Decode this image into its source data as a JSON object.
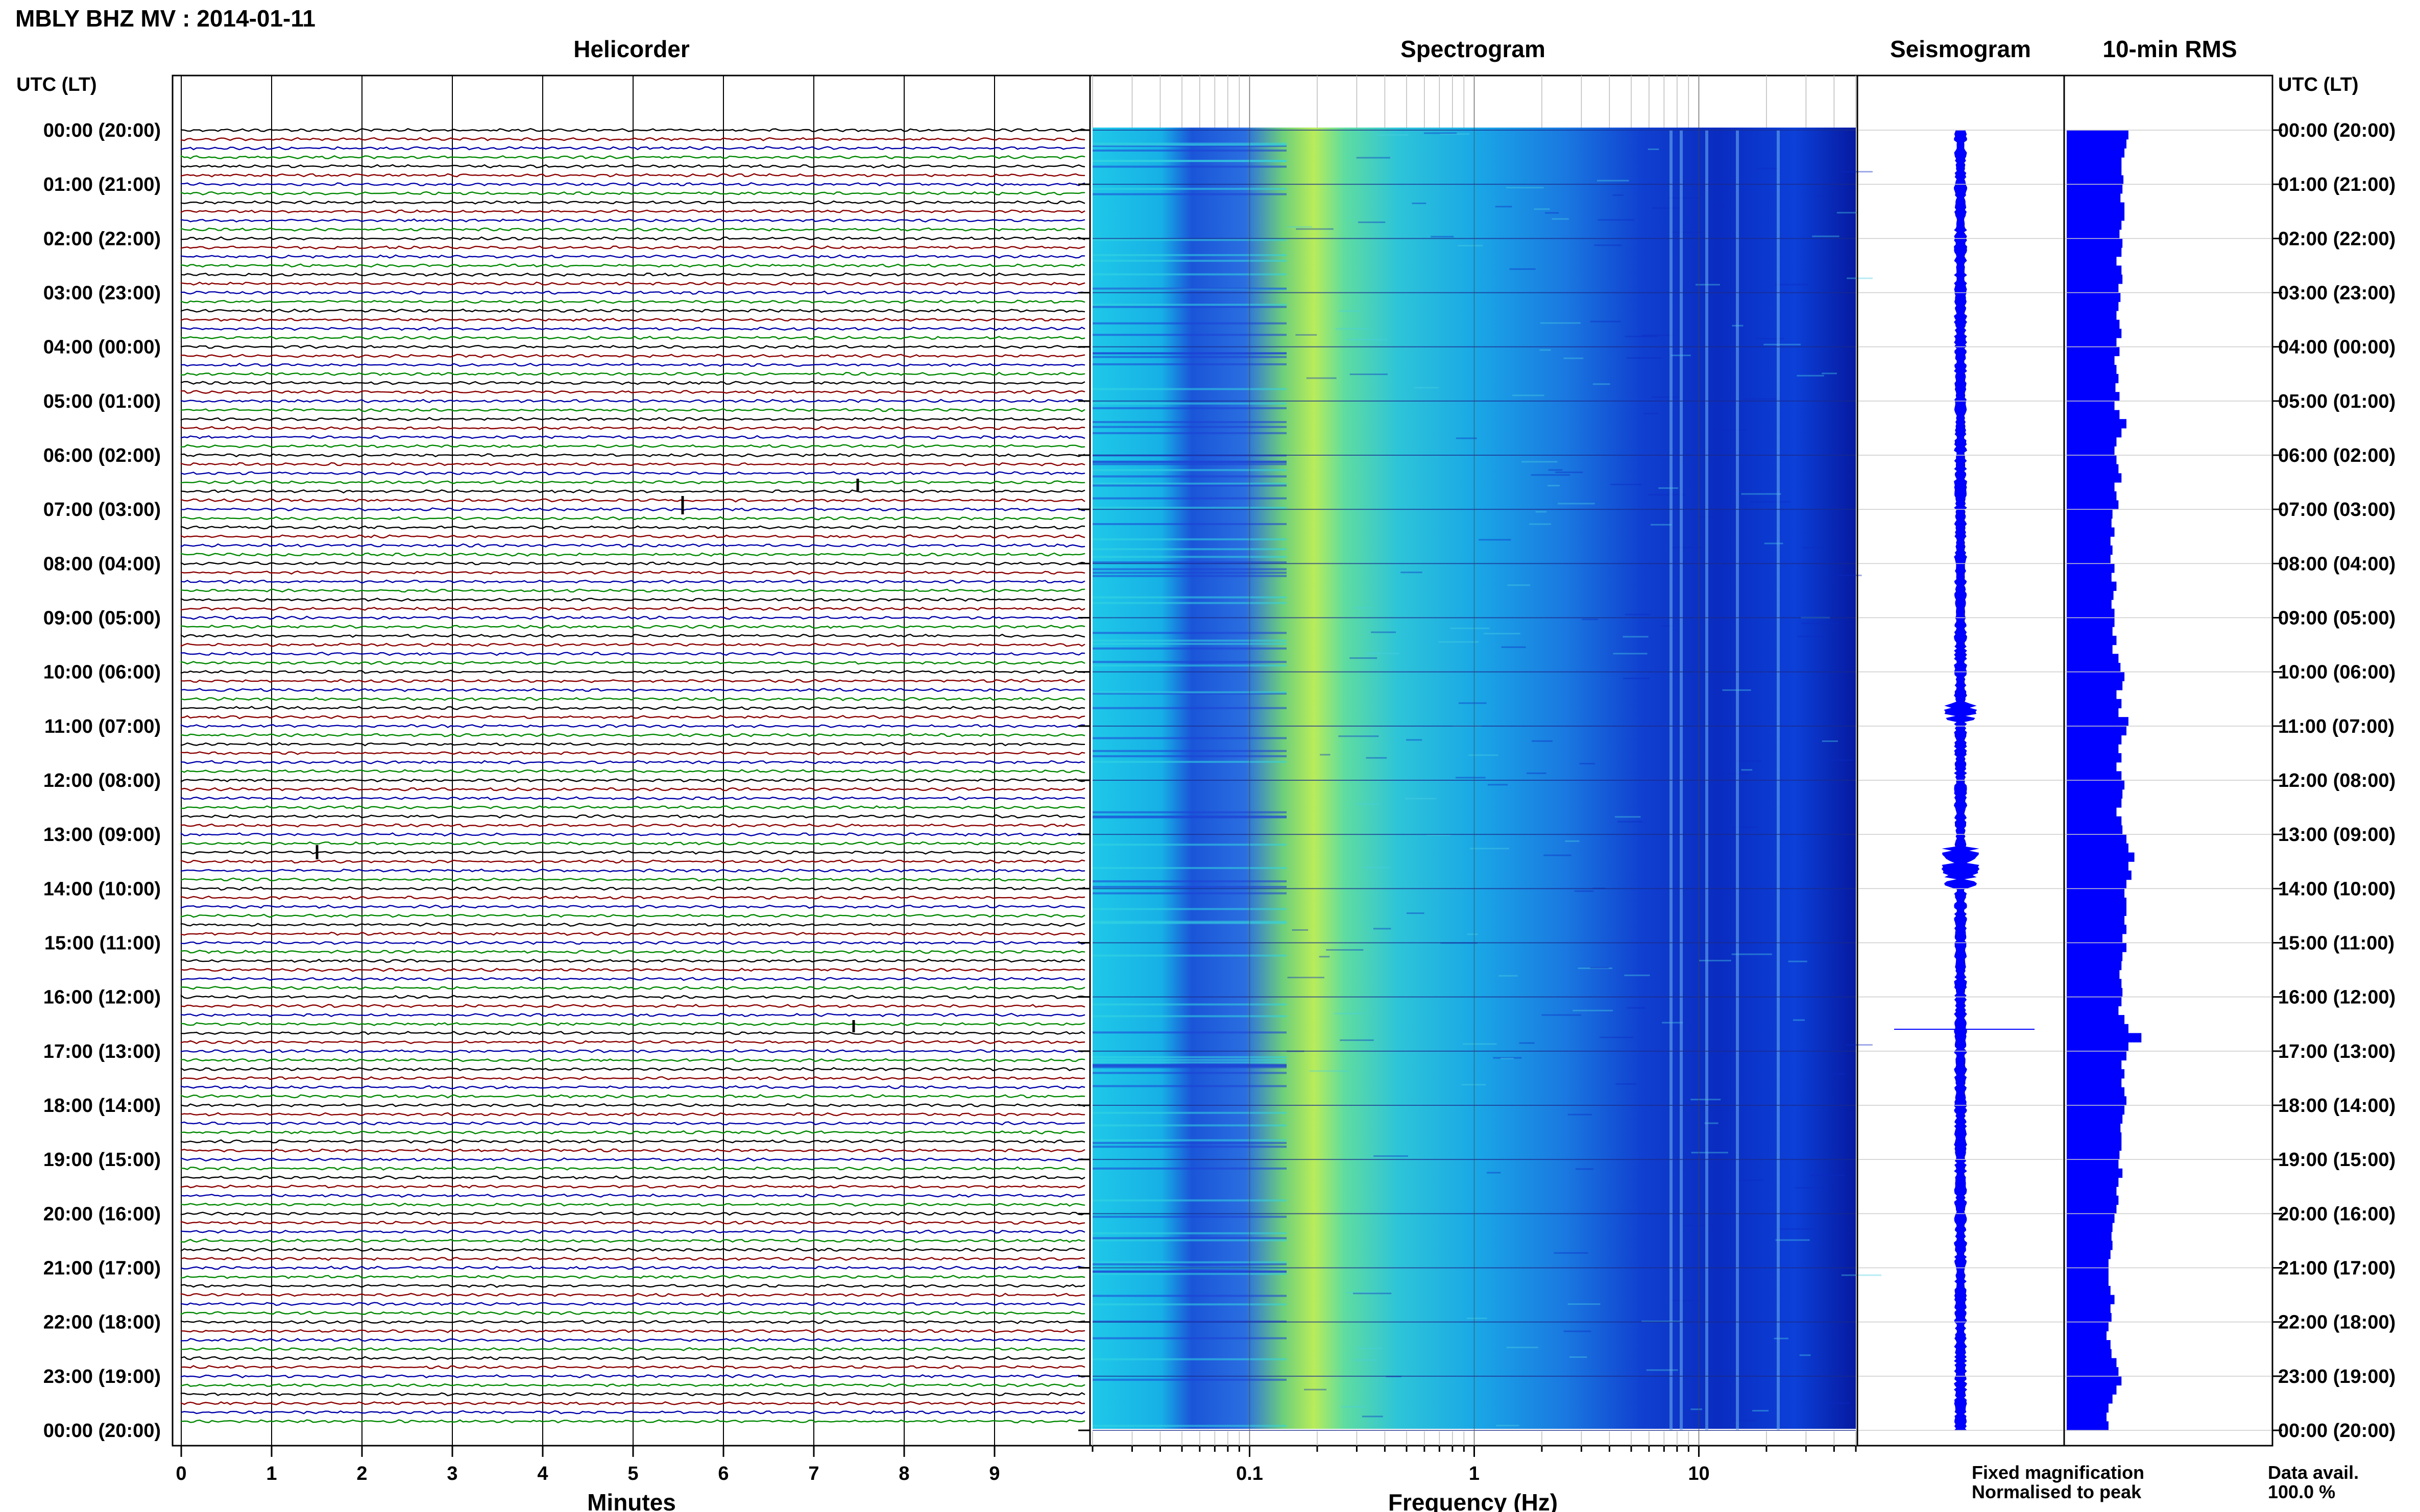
{
  "header": {
    "title": "MBLY BHZ MV : 2014-01-11",
    "panel_titles": [
      "Helicorder",
      "Spectrogram",
      "Seismogram",
      "10-min RMS"
    ],
    "utc_label_left": "UTC (LT)",
    "utc_label_right": "UTC (LT)"
  },
  "axes": {
    "time_labels": [
      "00:00 (20:00)",
      "01:00 (21:00)",
      "02:00 (22:00)",
      "03:00 (23:00)",
      "04:00 (00:00)",
      "05:00 (01:00)",
      "06:00 (02:00)",
      "07:00 (03:00)",
      "08:00 (04:00)",
      "09:00 (05:00)",
      "10:00 (06:00)",
      "11:00 (07:00)",
      "12:00 (08:00)",
      "13:00 (09:00)",
      "14:00 (10:00)",
      "15:00 (11:00)",
      "16:00 (12:00)",
      "17:00 (13:00)",
      "18:00 (14:00)",
      "19:00 (15:00)",
      "20:00 (16:00)",
      "21:00 (17:00)",
      "22:00 (18:00)",
      "23:00 (19:00)",
      "00:00 (20:00)"
    ],
    "minutes_ticks": [
      "0",
      "1",
      "2",
      "3",
      "4",
      "5",
      "6",
      "7",
      "8",
      "9"
    ],
    "minutes_label": "Minutes",
    "frequency_ticks": [
      "0.1",
      "1",
      "10"
    ],
    "frequency_label": "Frequency (Hz)"
  },
  "legend": {
    "fixed": "Fixed magnification",
    "normalised": "Normalised to peak",
    "fixed_color": "#1a1aff",
    "normalised_color": "#ff1a1a"
  },
  "data_avail": {
    "label": "Data avail.",
    "value": "100.0 %"
  },
  "colors": {
    "trace_cycle": [
      "#000000",
      "#8b0000",
      "#0000aa",
      "#008800"
    ],
    "rms_bar": "#0000ff",
    "seismogram": "#0000ff"
  },
  "chart_data": [
    {
      "type": "line",
      "title": "Helicorder",
      "xlabel": "Minutes",
      "xlim": [
        0,
        10
      ],
      "rows_per_hour": 6,
      "hours": 24
    },
    {
      "type": "heatmap",
      "title": "Spectrogram",
      "xlabel": "Frequency (Hz)",
      "xscale": "log",
      "xlim": [
        0.02,
        50
      ]
    },
    {
      "type": "line",
      "title": "Seismogram"
    },
    {
      "type": "bar",
      "title": "10-min RMS",
      "relative_values": [
        0.62,
        0.6,
        0.58,
        0.55,
        0.55,
        0.57,
        0.56,
        0.54,
        0.58,
        0.58,
        0.55,
        0.53,
        0.56,
        0.55,
        0.5,
        0.55,
        0.56,
        0.52,
        0.54,
        0.52,
        0.5,
        0.53,
        0.55,
        0.5,
        0.53,
        0.48,
        0.5,
        0.52,
        0.49,
        0.53,
        0.48,
        0.53,
        0.6,
        0.55,
        0.5,
        0.48,
        0.5,
        0.52,
        0.55,
        0.48,
        0.5,
        0.52,
        0.46,
        0.45,
        0.48,
        0.44,
        0.46,
        0.44,
        0.48,
        0.45,
        0.5,
        0.47,
        0.45,
        0.48,
        0.48,
        0.46,
        0.5,
        0.46,
        0.52,
        0.54,
        0.58,
        0.56,
        0.5,
        0.55,
        0.52,
        0.62,
        0.6,
        0.55,
        0.52,
        0.55,
        0.5,
        0.55,
        0.58,
        0.56,
        0.55,
        0.5,
        0.55,
        0.56,
        0.6,
        0.62,
        0.68,
        0.62,
        0.65,
        0.6,
        0.58,
        0.6,
        0.6,
        0.58,
        0.6,
        0.56,
        0.6,
        0.56,
        0.55,
        0.53,
        0.55,
        0.56,
        0.55,
        0.52,
        0.58,
        0.62,
        0.75,
        0.62,
        0.6,
        0.55,
        0.58,
        0.55,
        0.58,
        0.6,
        0.58,
        0.56,
        0.54,
        0.55,
        0.55,
        0.53,
        0.52,
        0.56,
        0.52,
        0.5,
        0.52,
        0.5,
        0.48,
        0.46,
        0.45,
        0.46,
        0.44,
        0.42,
        0.42,
        0.42,
        0.44,
        0.48,
        0.44,
        0.45,
        0.42,
        0.4,
        0.44,
        0.45,
        0.5,
        0.52,
        0.55,
        0.5,
        0.46,
        0.42,
        0.4,
        0.42
      ]
    }
  ]
}
